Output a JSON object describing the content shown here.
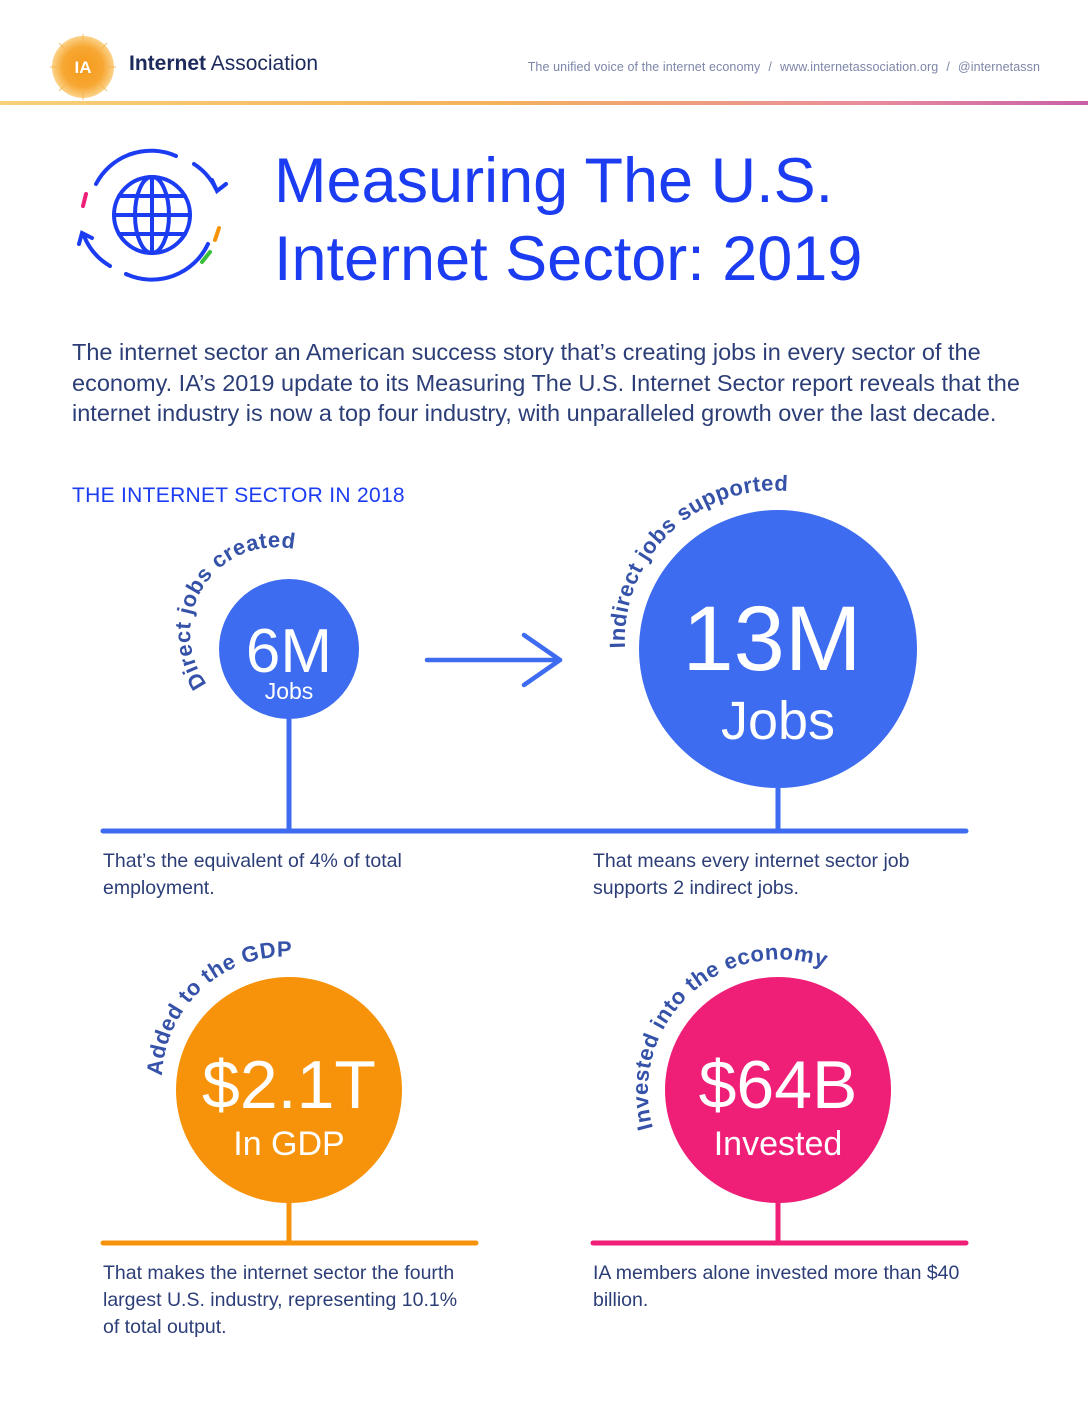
{
  "header": {
    "logo_badge": "IA",
    "logo_name_bold": "Internet",
    "logo_name_rest": " Association",
    "tagline": "The unified voice of the internet economy",
    "website": "www.internetassociation.org",
    "handle": "@internetassn",
    "separator": "/"
  },
  "title": {
    "line1": "Measuring The U.S.",
    "line2": "Internet Sector: 2019",
    "icon": "globe-icon"
  },
  "intro": "The internet sector an American success story that’s creating jobs in every sector of the economy. IA’s 2019 update to its Measuring The U.S. Internet Sector report reveals that the internet industry is now a top four industry, with unparalleled growth over the last decade.",
  "section_heading": "THE INTERNET SECTOR IN 2018",
  "stats": {
    "direct_jobs": {
      "arc_label": "Direct jobs created",
      "value": "6M",
      "unit": "Jobs",
      "note": "That’s the equivalent of 4% of total employment.",
      "color": "#3d6cf0"
    },
    "indirect_jobs": {
      "arc_label": "Indirect jobs supported",
      "value": "13M",
      "unit": "Jobs",
      "note": "That means every internet sector job supports 2 indirect jobs.",
      "color": "#3d6cf0"
    },
    "gdp": {
      "arc_label": "Added to the GDP",
      "value": "$2.1T",
      "unit": "In GDP",
      "note": "That makes the internet sector the fourth largest U.S. industry, representing 10.1% of total output.",
      "color": "#f7930a"
    },
    "investment": {
      "arc_label": "Invested into the economy",
      "value": "$64B",
      "unit": "Invested",
      "note": "IA members alone invested more than $40 billion.",
      "color": "#ef1f77"
    }
  },
  "colors": {
    "title_blue": "#1c3cf2",
    "text_navy": "#2c3e77",
    "jobs_blue": "#3d6cf0",
    "gdp_orange": "#f7930a",
    "invest_pink": "#ef1f77"
  }
}
